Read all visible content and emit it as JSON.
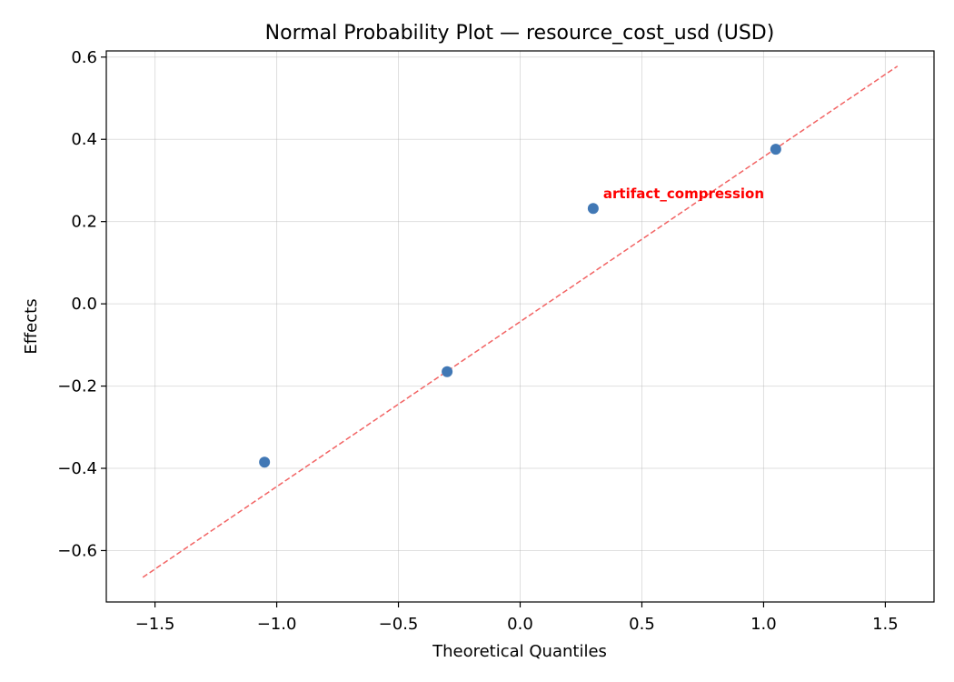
{
  "chart_data": {
    "type": "scatter",
    "title": "Normal Probability Plot — resource_cost_usd (USD)",
    "xlabel": "Theoretical Quantiles",
    "ylabel": "Effects",
    "xlim": [
      -1.7,
      1.7
    ],
    "ylim": [
      -0.725,
      0.615
    ],
    "xticks": [
      -1.5,
      -1.0,
      -0.5,
      0.0,
      0.5,
      1.0,
      1.5
    ],
    "xtick_labels": [
      "−1.5",
      "−1.0",
      "−0.5",
      "0.0",
      "0.5",
      "1.0",
      "1.5"
    ],
    "yticks": [
      -0.6,
      -0.4,
      -0.2,
      0.0,
      0.2,
      0.4,
      0.6
    ],
    "ytick_labels": [
      "−0.6",
      "−0.4",
      "−0.2",
      "0.0",
      "0.2",
      "0.4",
      "0.6"
    ],
    "grid": true,
    "points": [
      {
        "x": -1.05,
        "y": -0.385
      },
      {
        "x": -0.3,
        "y": -0.165
      },
      {
        "x": 0.3,
        "y": 0.232
      },
      {
        "x": 1.05,
        "y": 0.376
      }
    ],
    "point_color": "#4178b5",
    "reference_line": {
      "x": [
        -1.55,
        1.55
      ],
      "y": [
        -0.665,
        0.578
      ],
      "color": "#f26363",
      "style": "dashed"
    },
    "annotations": [
      {
        "text": "artifact_compression",
        "x": 0.3,
        "y": 0.232,
        "color": "#ff0000"
      }
    ]
  }
}
